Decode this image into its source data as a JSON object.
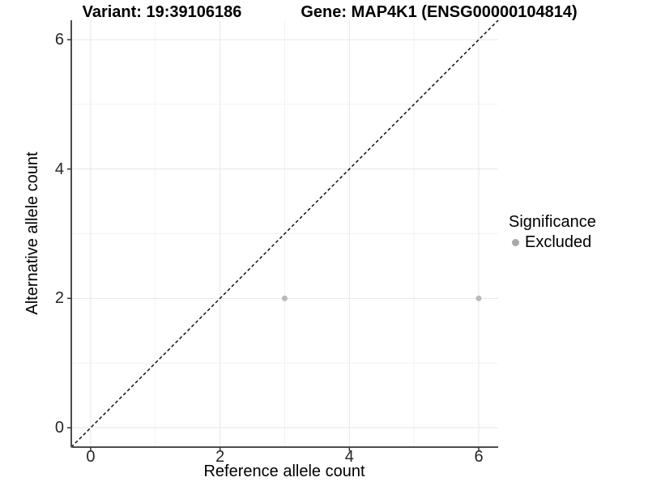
{
  "header": {
    "title_left": "Variant: 19:39106186",
    "title_right": "Gene: MAP4K1 (ENSG00000104814)"
  },
  "chart_data": {
    "type": "scatter",
    "xlabel": "Reference allele count",
    "ylabel": "Alternative allele count",
    "xlim": [
      -0.3,
      6.3
    ],
    "ylim": [
      -0.3,
      6.3
    ],
    "x_ticks": [
      0,
      2,
      4,
      6
    ],
    "y_ticks": [
      0,
      2,
      4,
      6
    ],
    "x_minor_ticks": [
      1,
      3,
      5
    ],
    "y_minor_ticks": [
      1,
      3,
      5
    ],
    "grid": "major+minor",
    "series": [
      {
        "name": "Excluded",
        "color": "#b9b9b9",
        "points": [
          {
            "x": 3,
            "y": 2
          },
          {
            "x": 6,
            "y": 2
          }
        ]
      }
    ],
    "reference_line": {
      "shape": "identity-diagonal",
      "style": "dashed",
      "color": "#000000"
    },
    "legend": {
      "title": "Significance",
      "position": "right",
      "entries": [
        {
          "label": "Excluded",
          "color": "#a9a9a9"
        }
      ]
    },
    "colors": {
      "axis_line": "#4d4d4d",
      "tick_mark": "#333333",
      "grid_major": "#e6e6e6",
      "grid_minor": "#f2f2f2",
      "tick_text": "#262626",
      "panel_background": "#ffffff"
    }
  }
}
